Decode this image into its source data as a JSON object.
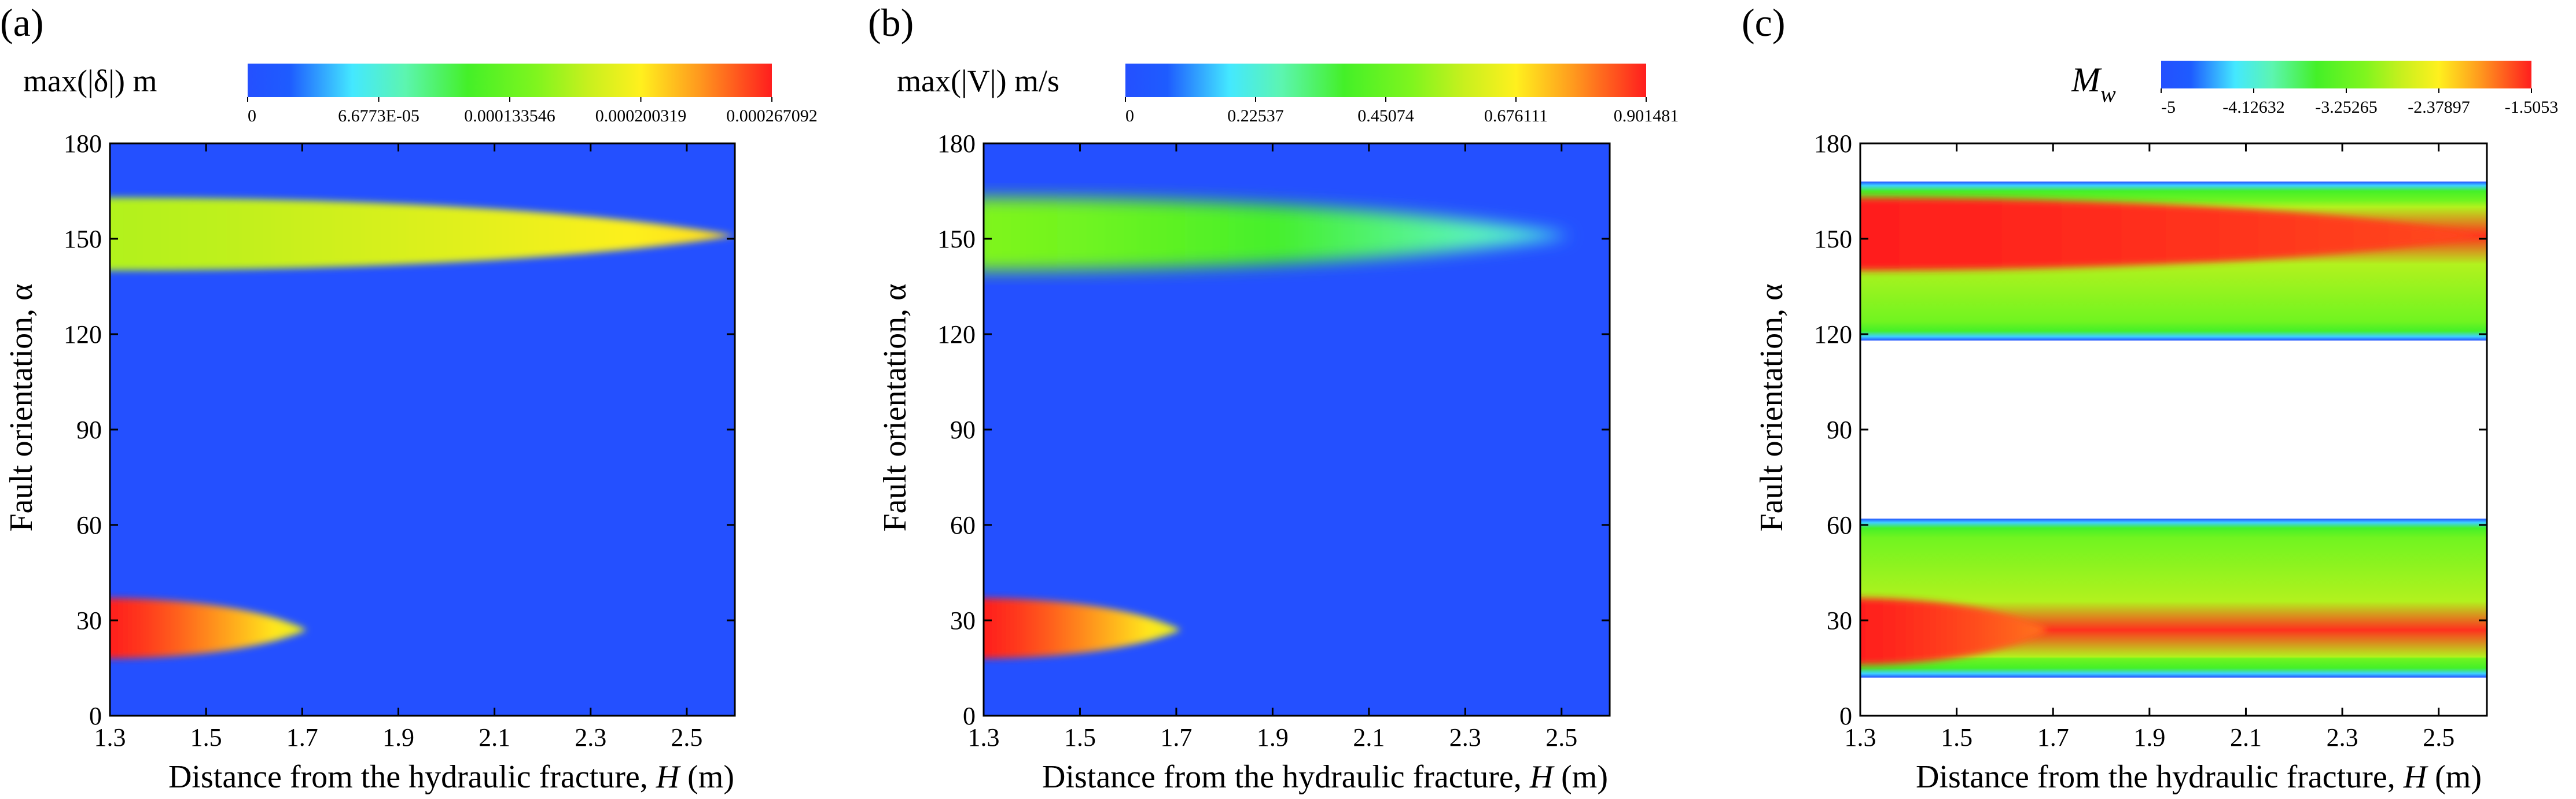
{
  "chart_data": [
    {
      "type": "heatmap",
      "panel_label": "(a)",
      "colorbar_label": "max(|δ|) m",
      "colorbar_ticks": [
        "0",
        "6.6773E-05",
        "0.000133546",
        "0.000200319",
        "0.000267092"
      ],
      "colorbar_range": [
        0,
        0.000267092
      ],
      "xlabel_prefix": "Distance from the hydraulic fracture, ",
      "xlabel_var": "H",
      "xlabel_suffix": " (m)",
      "ylabel": "Fault orientation, α",
      "xlim": [
        1.3,
        2.6
      ],
      "ylim": [
        0,
        180
      ],
      "xticks": [
        "1.3",
        "1.5",
        "1.7",
        "1.9",
        "2.1",
        "2.3",
        "2.5"
      ],
      "yticks": [
        "0",
        "30",
        "60",
        "90",
        "120",
        "150",
        "180"
      ],
      "background_value_fraction": 0.0,
      "regions": [
        {
          "name": "upper-lobe",
          "center_alpha": 151,
          "alpha_low_at_start": 140,
          "alpha_high_at_start": 163,
          "H_start": 1.3,
          "H_tip": 2.6,
          "value_fraction_at_start": 0.62,
          "value_fraction_at_tip": 0.78
        },
        {
          "name": "lower-lobe",
          "center_alpha": 27,
          "alpha_low_at_start": 18,
          "alpha_high_at_start": 37,
          "H_start": 1.3,
          "H_tip": 1.71,
          "value_fraction_at_start": 1.0,
          "value_fraction_at_tip": 0.7
        }
      ]
    },
    {
      "type": "heatmap",
      "panel_label": "(b)",
      "colorbar_label": "max(|V|) m/s",
      "colorbar_ticks": [
        "0",
        "0.22537",
        "0.45074",
        "0.676111",
        "0.901481"
      ],
      "colorbar_range": [
        0,
        0.901481
      ],
      "xlabel_prefix": "Distance from the hydraulic fracture, ",
      "xlabel_var": "H",
      "xlabel_suffix": " (m)",
      "ylabel": "Fault orientation, α",
      "xlim": [
        1.3,
        2.6
      ],
      "ylim": [
        0,
        180
      ],
      "xticks": [
        "1.3",
        "1.5",
        "1.7",
        "1.9",
        "2.1",
        "2.3",
        "2.5"
      ],
      "yticks": [
        "0",
        "30",
        "60",
        "90",
        "120",
        "150",
        "180"
      ],
      "background_value_fraction": 0.0,
      "regions": [
        {
          "name": "upper-lobe",
          "center_alpha": 151,
          "alpha_low_at_start": 140,
          "alpha_high_at_start": 163,
          "H_start": 1.3,
          "H_tip": 2.52,
          "value_fraction_at_start": 0.55,
          "value_fraction_at_tip": 0.22
        },
        {
          "name": "lower-lobe",
          "center_alpha": 27,
          "alpha_low_at_start": 18,
          "alpha_high_at_start": 37,
          "H_start": 1.3,
          "H_tip": 1.71,
          "value_fraction_at_start": 1.0,
          "value_fraction_at_tip": 0.7
        }
      ]
    },
    {
      "type": "heatmap",
      "panel_label": "(c)",
      "colorbar_label": "M",
      "colorbar_label_sub": "w",
      "colorbar_ticks": [
        "-5",
        "-4.12632",
        "-3.25265",
        "-2.37897",
        "-1.5053"
      ],
      "colorbar_range": [
        -5,
        -1.5053
      ],
      "xlabel_prefix": "Distance from the hydraulic fracture, ",
      "xlabel_var": "H",
      "xlabel_suffix": " (m)",
      "ylabel": "Fault orientation, α",
      "xlim": [
        1.3,
        2.6
      ],
      "ylim": [
        0,
        180
      ],
      "xticks": [
        "1.3",
        "1.5",
        "1.7",
        "1.9",
        "2.1",
        "2.3",
        "2.5"
      ],
      "yticks": [
        "0",
        "30",
        "60",
        "90",
        "120",
        "150",
        "180"
      ],
      "background": "white (no data)",
      "bands": [
        {
          "name": "upper-band",
          "alpha_range": [
            118,
            168
          ],
          "core_alpha": 151,
          "core_fraction": 0.98,
          "band_fraction": 0.52
        },
        {
          "name": "lower-band",
          "alpha_range": [
            12,
            62
          ],
          "core_alpha": 27,
          "core_fraction": 0.98,
          "band_fraction": 0.52
        }
      ],
      "regions": [
        {
          "name": "upper-lobe",
          "center_alpha": 151,
          "alpha_low_at_start": 140,
          "alpha_high_at_start": 163,
          "H_start": 1.3,
          "H_tip": 2.6,
          "value_fraction_at_start": 1.0,
          "value_fraction_at_tip": 0.95
        },
        {
          "name": "lower-lobe",
          "center_alpha": 27,
          "alpha_low_at_start": 16,
          "alpha_high_at_start": 37,
          "H_start": 1.3,
          "H_tip": 1.69,
          "value_fraction_at_start": 1.0,
          "value_fraction_at_tip": 0.9
        }
      ]
    }
  ]
}
